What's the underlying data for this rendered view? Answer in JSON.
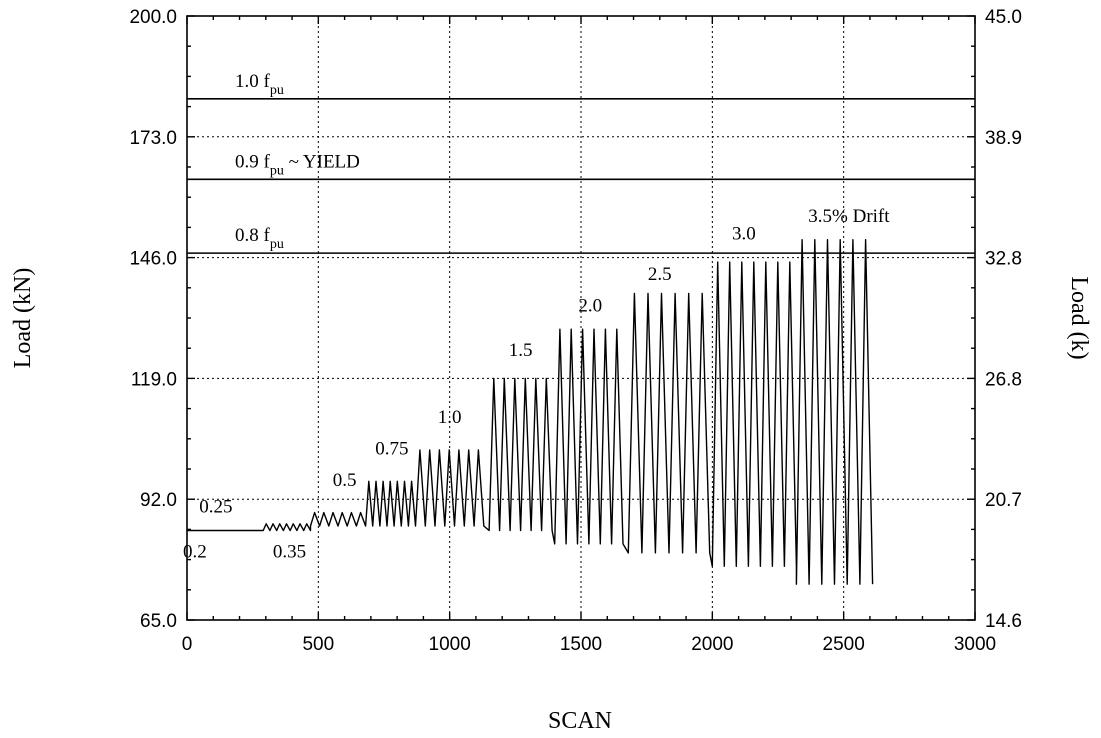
{
  "chart_data": {
    "type": "line",
    "xlabel": "SCAN",
    "ylabel_left": "Load (kN)",
    "ylabel_right": "Load (k)",
    "xlim": [
      0,
      3000
    ],
    "ylim": [
      65,
      200
    ],
    "grid": true,
    "x_ticks": [
      "0",
      "500",
      "1000",
      "1500",
      "2000",
      "2500",
      "3000"
    ],
    "y_ticks_left": [
      "65.0",
      "92.0",
      "119.0",
      "146.0",
      "173.0",
      "200.0"
    ],
    "y_ticks_right": [
      "14.6",
      "20.7",
      "26.8",
      "32.8",
      "38.9",
      "45.0"
    ],
    "reference_lines": [
      {
        "y": 181.5,
        "label_main": "1.0 f",
        "label_sub": "pu",
        "label_suffix": ""
      },
      {
        "y": 163.5,
        "label_main": "0.9 f",
        "label_sub": "pu",
        "label_suffix": " ~ YIELD"
      },
      {
        "y": 147.0,
        "label_main": "0.8 f",
        "label_sub": "pu",
        "label_suffix": ""
      }
    ],
    "drift_labels": [
      {
        "text": "0.2",
        "x": 30,
        "y": 79
      },
      {
        "text": "0.25",
        "x": 110,
        "y": 89
      },
      {
        "text": "0.35",
        "x": 390,
        "y": 79
      },
      {
        "text": "0.5",
        "x": 600,
        "y": 95
      },
      {
        "text": "0.75",
        "x": 780,
        "y": 102
      },
      {
        "text": "1.0",
        "x": 1000,
        "y": 109
      },
      {
        "text": "1.5",
        "x": 1270,
        "y": 124
      },
      {
        "text": "2.0",
        "x": 1535,
        "y": 134
      },
      {
        "text": "2.5",
        "x": 1800,
        "y": 141
      },
      {
        "text": "3.0",
        "x": 2120,
        "y": 150
      },
      {
        "text": "3.5% Drift",
        "x": 2520,
        "y": 154
      }
    ],
    "series": [
      {
        "cycles": [
          {
            "start": 0,
            "end": 290,
            "n": 0,
            "base": 85,
            "peak": 85
          },
          {
            "start": 290,
            "end": 470,
            "n": 7,
            "base": 85,
            "peak": 86.5
          },
          {
            "start": 470,
            "end": 680,
            "n": 6,
            "base": 86,
            "peak": 89
          },
          {
            "start": 680,
            "end": 870,
            "n": 7,
            "base": 86,
            "peak": 96
          },
          {
            "start": 870,
            "end": 1130,
            "n": 7,
            "base": 86,
            "peak": 103
          },
          {
            "start": 1150,
            "end": 1390,
            "n": 6,
            "base": 85,
            "peak": 119
          },
          {
            "start": 1400,
            "end": 1660,
            "n": 6,
            "base": 82,
            "peak": 130
          },
          {
            "start": 1680,
            "end": 1990,
            "n": 6,
            "base": 80,
            "peak": 138
          },
          {
            "start": 2000,
            "end": 2320,
            "n": 7,
            "base": 77,
            "peak": 145
          },
          {
            "start": 2320,
            "end": 2610,
            "n": 6,
            "base": 73,
            "peak": 150
          }
        ]
      }
    ]
  }
}
